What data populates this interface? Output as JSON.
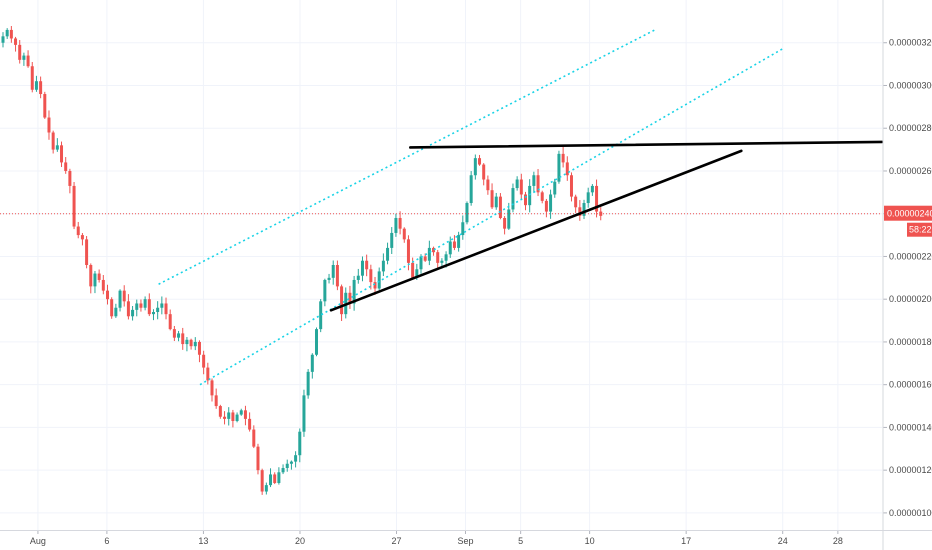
{
  "chart_data": {
    "type": "candlestick",
    "title": "",
    "xlabel": "",
    "ylabel": "",
    "ylim": [
      9.2e-07,
      3.4e-06
    ],
    "y_ticks": [
      "0.00000320",
      "0.00000300",
      "0.00000280",
      "0.00000260",
      "0.00000240",
      "0.00000220",
      "0.00000200",
      "0.00000180",
      "0.00000160",
      "0.00000140",
      "0.00000120",
      "0.00000100"
    ],
    "x_ticks": [
      {
        "label": "Aug",
        "day": 1
      },
      {
        "label": "6",
        "day": 6
      },
      {
        "label": "13",
        "day": 13
      },
      {
        "label": "20",
        "day": 20
      },
      {
        "label": "27",
        "day": 27
      },
      {
        "label": "Sep",
        "day": 32
      },
      {
        "label": "5",
        "day": 36
      },
      {
        "label": "10",
        "day": 41
      },
      {
        "label": "17",
        "day": 48
      },
      {
        "label": "24",
        "day": 55
      },
      {
        "label": "28",
        "day": 59
      }
    ],
    "xlim_days": [
      -1.75,
      62.2
    ],
    "current_price": {
      "label": "0.00000240",
      "value": 2.4e-06,
      "countdown": "58:22"
    },
    "colors": {
      "up": "#26a69a",
      "down": "#ef5350",
      "price_line": "#ef5350",
      "channel": "#19d3e6",
      "trendline": "#000000",
      "grid": "#f0f3fa"
    },
    "closes": [
      3.23,
      3.26,
      3.22,
      3.19,
      3.12,
      3.14,
      3.09,
      2.98,
      3.02,
      2.96,
      2.85,
      2.78,
      2.7,
      2.72,
      2.64,
      2.6,
      2.53,
      2.34,
      2.3,
      2.28,
      2.16,
      2.06,
      2.12,
      2.09,
      2.04,
      2.0,
      1.92,
      1.96,
      2.04,
      1.99,
      1.92,
      1.95,
      1.98,
      1.96,
      2.0,
      1.93,
      1.94,
      1.96,
      1.98,
      1.93,
      1.86,
      1.82,
      1.84,
      1.79,
      1.81,
      1.78,
      1.8,
      1.74,
      1.68,
      1.62,
      1.55,
      1.5,
      1.45,
      1.44,
      1.47,
      1.43,
      1.46,
      1.48,
      1.44,
      1.39,
      1.31,
      1.2,
      1.1,
      1.13,
      1.18,
      1.14,
      1.19,
      1.21,
      1.23,
      1.24,
      1.27,
      1.38,
      1.55,
      1.66,
      1.74,
      1.86,
      1.99,
      2.09,
      2.1,
      2.16,
      2.06,
      1.93,
      2.03,
      1.98,
      2.09,
      2.11,
      2.18,
      2.14,
      2.08,
      2.05,
      2.13,
      2.18,
      2.24,
      2.31,
      2.38,
      2.33,
      2.28,
      2.17,
      2.1,
      2.14,
      2.2,
      2.18,
      2.24,
      2.22,
      2.17,
      2.18,
      2.21,
      2.27,
      2.24,
      2.3,
      2.36,
      2.45,
      2.58,
      2.66,
      2.63,
      2.56,
      2.51,
      2.43,
      2.48,
      2.38,
      2.33,
      2.42,
      2.52,
      2.56,
      2.49,
      2.44,
      2.53,
      2.58,
      2.5,
      2.46,
      2.41,
      2.49,
      2.55,
      2.68,
      2.64,
      2.58,
      2.48,
      2.43,
      2.39,
      2.45,
      2.5,
      2.53,
      2.41,
      2.39
    ]
  }
}
